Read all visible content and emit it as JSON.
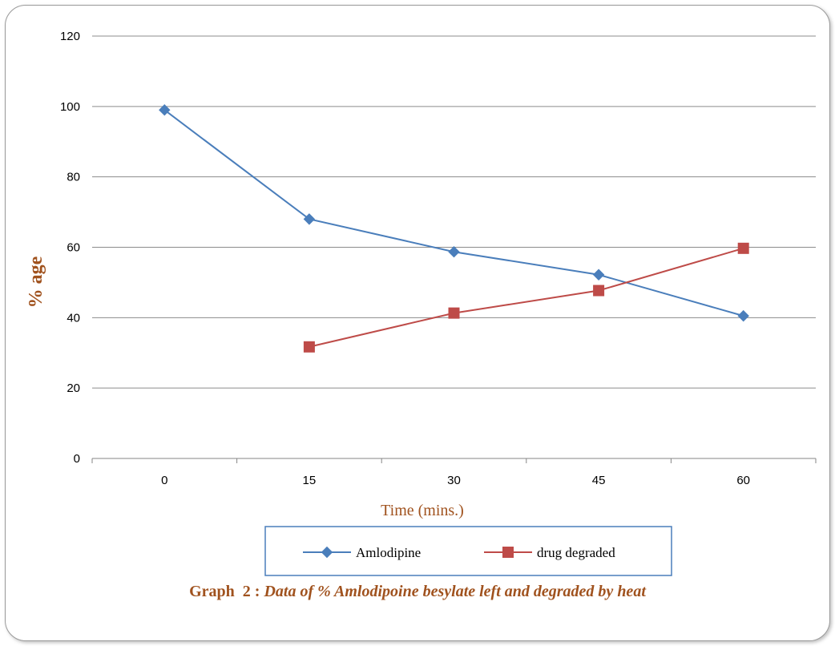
{
  "chart_data": {
    "type": "line",
    "categories": [
      "0",
      "15",
      "30",
      "45",
      "60"
    ],
    "series": [
      {
        "name": "Amlodipine",
        "values": [
          99,
          68,
          58.7,
          52.2,
          40.5
        ],
        "color": "#4a7ebb",
        "marker": "diamond"
      },
      {
        "name": "drug degraded",
        "values": [
          null,
          31.7,
          41.3,
          47.7,
          59.7
        ],
        "color": "#be4b48",
        "marker": "square"
      }
    ],
    "xlabel": "Time (mins.)",
    "ylabel": "% age",
    "ylim": [
      0,
      120
    ],
    "yticks": [
      0,
      20,
      40,
      60,
      80,
      100,
      120
    ],
    "grid": true,
    "legend_position": "bottom"
  },
  "caption": {
    "prefix": "Graph  2 : ",
    "text": "Data of % Amlodipoine besylate left and degraded by heat"
  }
}
